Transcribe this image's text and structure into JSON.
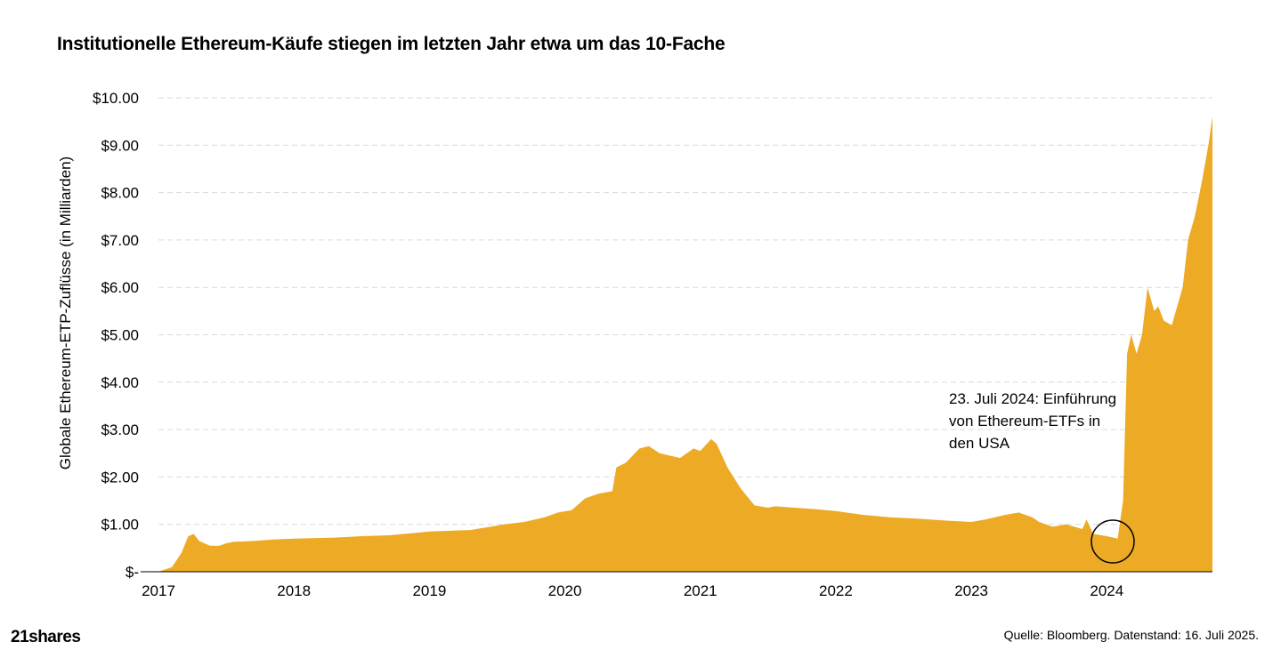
{
  "brand": "21shares",
  "source": "Quelle: Bloomberg. Datenstand: 16. Juli 2025.",
  "annotation": {
    "lines": [
      "23. Juli 2024: Einführung",
      "von Ethereum-ETFs in",
      "den USA"
    ]
  },
  "colors": {
    "area": "#EDAA24",
    "grid": "#D9D9D9",
    "axis": "#000000"
  },
  "chart_data": {
    "type": "area",
    "title": "Institutionelle Ethereum-Käufe stiegen im letzten Jahr etwa um das 10-Fache",
    "ylabel": "Globale Ethereum-ETP-Zuflüsse (in Milliarden)",
    "xlabel": "",
    "xlim": [
      2017.0,
      2024.78
    ],
    "ylim": [
      0,
      10
    ],
    "grid": true,
    "x_ticks": [
      "2017",
      "2018",
      "2019",
      "2020",
      "2021",
      "2022",
      "2023",
      "2024"
    ],
    "y_ticks": [
      "$-",
      "$1.00",
      "$2.00",
      "$3.00",
      "$4.00",
      "$5.00",
      "$6.00",
      "$7.00",
      "$8.00",
      "$9.00",
      "$10.00"
    ],
    "series": [
      {
        "x": [
          2017.0,
          2017.1,
          2017.17,
          2017.22,
          2017.26,
          2017.3,
          2017.38,
          2017.45,
          2017.5,
          2017.55,
          2017.7,
          2017.85,
          2018.0,
          2018.3,
          2018.5,
          2018.7,
          2018.9,
          2019.0,
          2019.3,
          2019.45,
          2019.55,
          2019.7,
          2019.85,
          2019.95,
          2020.05,
          2020.15,
          2020.25,
          2020.35,
          2020.38,
          2020.45,
          2020.55,
          2020.62,
          2020.7,
          2020.85,
          2020.95,
          2021.0,
          2021.08,
          2021.12,
          2021.2,
          2021.3,
          2021.4,
          2021.5,
          2021.55,
          2021.7,
          2021.85,
          2022.0,
          2022.2,
          2022.4,
          2022.6,
          2022.8,
          2023.0,
          2023.1,
          2023.25,
          2023.35,
          2023.45,
          2023.5,
          2023.6,
          2023.7,
          2023.82,
          2023.85,
          2023.9,
          2024.0,
          2024.08,
          2024.12,
          2024.15,
          2024.18,
          2024.22,
          2024.26,
          2024.3,
          2024.35,
          2024.38,
          2024.42,
          2024.48,
          2024.52,
          2024.56,
          2024.6,
          2024.65,
          2024.7,
          2024.75,
          2024.78
        ],
        "y": [
          0.0,
          0.1,
          0.4,
          0.75,
          0.8,
          0.65,
          0.55,
          0.55,
          0.6,
          0.63,
          0.65,
          0.68,
          0.7,
          0.72,
          0.75,
          0.77,
          0.82,
          0.85,
          0.88,
          0.95,
          1.0,
          1.05,
          1.15,
          1.25,
          1.3,
          1.55,
          1.65,
          1.7,
          2.2,
          2.3,
          2.6,
          2.65,
          2.5,
          2.4,
          2.6,
          2.55,
          2.8,
          2.7,
          2.2,
          1.75,
          1.4,
          1.35,
          1.38,
          1.35,
          1.32,
          1.28,
          1.2,
          1.15,
          1.12,
          1.08,
          1.05,
          1.1,
          1.2,
          1.25,
          1.15,
          1.05,
          0.95,
          1.0,
          0.9,
          1.1,
          0.8,
          0.75,
          0.7,
          1.5,
          4.6,
          5.0,
          4.6,
          5.0,
          6.0,
          5.5,
          5.6,
          5.3,
          5.2,
          5.6,
          6.0,
          7.0,
          7.5,
          8.2,
          9.0,
          9.6
        ]
      }
    ]
  }
}
